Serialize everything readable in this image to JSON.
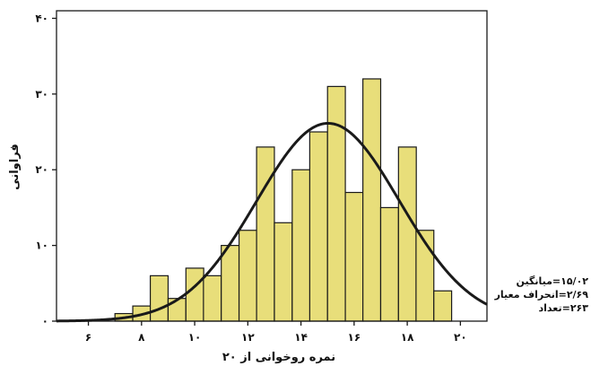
{
  "chart_data": {
    "type": "bar",
    "subtype": "histogram-with-normal-curve",
    "xlabel": "نمره روخوانی از ۲۰",
    "ylabel": "فراوانی",
    "xlim": [
      4.8,
      21
    ],
    "ylim": [
      0,
      41
    ],
    "x_ticks": [
      6,
      8,
      10,
      12,
      14,
      16,
      18,
      20
    ],
    "x_tick_labels": [
      "۶",
      "۸",
      "۱۰",
      "۱۲",
      "۱۴",
      "۱۶",
      "۱۸",
      "۲۰"
    ],
    "y_ticks": [
      0,
      10,
      20,
      30,
      40
    ],
    "y_tick_labels": [
      "۰",
      "۱۰",
      "۲۰",
      "۳۰",
      "۴۰"
    ],
    "bin_width": 0.67,
    "bins": [
      {
        "x0": 5.0,
        "value": 0
      },
      {
        "x0": 5.67,
        "value": 0
      },
      {
        "x0": 6.33,
        "value": 0
      },
      {
        "x0": 7.0,
        "value": 1
      },
      {
        "x0": 7.67,
        "value": 2
      },
      {
        "x0": 8.33,
        "value": 6
      },
      {
        "x0": 9.0,
        "value": 3
      },
      {
        "x0": 9.67,
        "value": 7
      },
      {
        "x0": 10.33,
        "value": 6
      },
      {
        "x0": 11.0,
        "value": 10
      },
      {
        "x0": 11.67,
        "value": 12
      },
      {
        "x0": 12.33,
        "value": 23
      },
      {
        "x0": 13.0,
        "value": 13
      },
      {
        "x0": 13.67,
        "value": 20
      },
      {
        "x0": 14.33,
        "value": 25
      },
      {
        "x0": 15.0,
        "value": 31
      },
      {
        "x0": 15.67,
        "value": 17
      },
      {
        "x0": 16.33,
        "value": 32
      },
      {
        "x0": 17.0,
        "value": 15
      },
      {
        "x0": 17.67,
        "value": 23
      },
      {
        "x0": 18.33,
        "value": 12
      },
      {
        "x0": 19.0,
        "value": 4
      }
    ],
    "normal_curve": {
      "mean": 15.02,
      "sd": 2.69,
      "n": 263
    },
    "stats_text": [
      {
        "value": "۱۵/۰۲",
        "label": "میانگین"
      },
      {
        "value": "۲/۶۹",
        "label": "انحراف معیار"
      },
      {
        "value": "۲۶۳",
        "label": "تعداد"
      }
    ],
    "colors": {
      "bar_fill": "#e8de7a",
      "bar_stroke": "#1a1a1a",
      "curve": "#1a1a1a",
      "axis": "#1a1a1a"
    },
    "grid": false
  }
}
